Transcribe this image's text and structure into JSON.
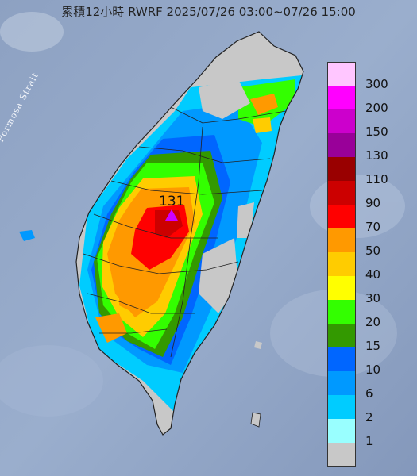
{
  "title": "累積12小時 RWRF 2025/07/26 03:00~07/26 15:00",
  "strait_label": "Formosa Strait",
  "peak": {
    "value": "131",
    "marker_color": "#cc00ff"
  },
  "legend": [
    {
      "label": "300",
      "color": "#ffc6ff"
    },
    {
      "label": "200",
      "color": "#ff00ff"
    },
    {
      "label": "150",
      "color": "#cc00cc"
    },
    {
      "label": "130",
      "color": "#990099"
    },
    {
      "label": "110",
      "color": "#990000"
    },
    {
      "label": "90",
      "color": "#cc0000"
    },
    {
      "label": "70",
      "color": "#ff0000"
    },
    {
      "label": "50",
      "color": "#ff9900"
    },
    {
      "label": "40",
      "color": "#ffcc00"
    },
    {
      "label": "30",
      "color": "#ffff00"
    },
    {
      "label": "20",
      "color": "#33ff00"
    },
    {
      "label": "15",
      "color": "#339900"
    },
    {
      "label": "10",
      "color": "#0066ff"
    },
    {
      "label": "6",
      "color": "#0099ff"
    },
    {
      "label": "2",
      "color": "#00ccff"
    },
    {
      "label": "1",
      "color": "#99ffff"
    },
    {
      "label": "",
      "color": "#c8c8c8"
    }
  ],
  "colors": {
    "ocean": "#8fa3c4",
    "boundary": "#222222",
    "no_rain": "#c8c8c8"
  }
}
